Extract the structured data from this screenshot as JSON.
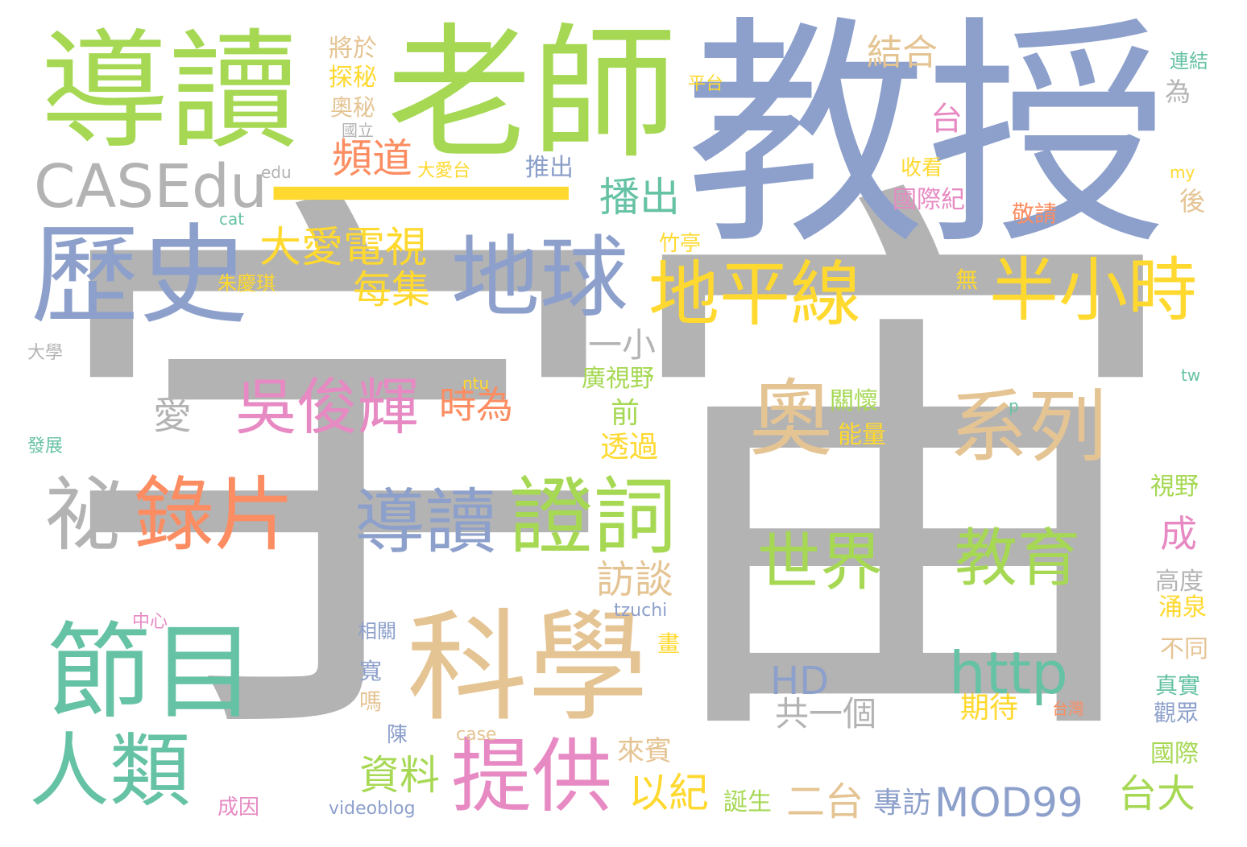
{
  "palette": {
    "gray": "#b3b3b3",
    "blue": "#8da0cb",
    "green": "#a6d854",
    "teal": "#66c2a5",
    "orange": "#fc8d62",
    "pink": "#e78ac3",
    "yellow": "#ffd92f",
    "tan": "#e5c494"
  },
  "words": [
    {
      "text": "宇宙",
      "color": "#b3b3b3"
    },
    {
      "text": "教授",
      "color": "#8da0cb"
    },
    {
      "text": "老師",
      "color": "#a6d854"
    },
    {
      "text": "導讀",
      "color": "#a6d854"
    },
    {
      "text": "一",
      "color": "#ffd92f"
    },
    {
      "text": "CASEdu",
      "color": "#b3b3b3"
    },
    {
      "text": "歷史",
      "color": "#8da0cb"
    },
    {
      "text": "地球",
      "color": "#8da0cb"
    },
    {
      "text": "地平線",
      "color": "#ffd92f"
    },
    {
      "text": "半小時",
      "color": "#ffd92f"
    },
    {
      "text": "科學",
      "color": "#e5c494"
    },
    {
      "text": "節目",
      "color": "#66c2a5"
    },
    {
      "text": "人類",
      "color": "#66c2a5"
    },
    {
      "text": "提供",
      "color": "#e78ac3"
    },
    {
      "text": "導讀",
      "color": "#8da0cb"
    },
    {
      "text": "證詞",
      "color": "#a6d854"
    },
    {
      "text": "錄片",
      "color": "#fc8d62"
    },
    {
      "text": "祕",
      "color": "#b3b3b3"
    },
    {
      "text": "吳俊輝",
      "color": "#e78ac3"
    },
    {
      "text": "奧",
      "color": "#e5c494"
    },
    {
      "text": "系列",
      "color": "#e5c494"
    },
    {
      "text": "世界",
      "color": "#a6d854"
    },
    {
      "text": "教育",
      "color": "#a6d854"
    },
    {
      "text": "http",
      "color": "#66c2a5"
    },
    {
      "text": "HD",
      "color": "#8da0cb"
    },
    {
      "text": "MOD99",
      "color": "#8da0cb"
    },
    {
      "text": "結合",
      "color": "#e5c494"
    },
    {
      "text": "頻道",
      "color": "#fc8d62"
    },
    {
      "text": "播出",
      "color": "#66c2a5"
    },
    {
      "text": "大愛電視",
      "color": "#ffd92f"
    },
    {
      "text": "每集",
      "color": "#ffd92f"
    },
    {
      "text": "台",
      "color": "#e78ac3"
    },
    {
      "text": "一小",
      "color": "#b3b3b3"
    },
    {
      "text": "愛",
      "color": "#b3b3b3"
    },
    {
      "text": "時為",
      "color": "#fc8d62"
    },
    {
      "text": "前",
      "color": "#a6d854"
    },
    {
      "text": "透過",
      "color": "#ffd92f"
    },
    {
      "text": "訪談",
      "color": "#e5c494"
    },
    {
      "text": "資料",
      "color": "#a6d854"
    },
    {
      "text": "以紀",
      "color": "#ffd92f"
    },
    {
      "text": "二台",
      "color": "#e5c494"
    },
    {
      "text": "專訪",
      "color": "#8da0cb"
    },
    {
      "text": "台大",
      "color": "#a6d854"
    },
    {
      "text": "共一個",
      "color": "#b3b3b3"
    },
    {
      "text": "高",
      "color": "#b3b3b3"
    },
    {
      "text": "期待",
      "color": "#ffd92f"
    },
    {
      "text": "成",
      "color": "#e78ac3"
    },
    {
      "text": "來賓",
      "color": "#e5c494"
    },
    {
      "text": "誕生",
      "color": "#a6d854"
    },
    {
      "text": "廣視野",
      "color": "#a6d854"
    },
    {
      "text": "關懷",
      "color": "#a6d854"
    },
    {
      "text": "能量",
      "color": "#ffd92f"
    },
    {
      "text": "將於",
      "color": "#e5c494"
    },
    {
      "text": "探秘",
      "color": "#ffd92f"
    },
    {
      "text": "奧秘",
      "color": "#e5c494"
    },
    {
      "text": "國立",
      "color": "#b3b3b3"
    },
    {
      "text": "edu",
      "color": "#b3b3b3"
    },
    {
      "text": "大愛台",
      "color": "#ffd92f"
    },
    {
      "text": "推出",
      "color": "#8da0cb"
    },
    {
      "text": "平台",
      "color": "#ffd92f"
    },
    {
      "text": "連結",
      "color": "#66c2a5"
    },
    {
      "text": "為",
      "color": "#b3b3b3"
    },
    {
      "text": "收看",
      "color": "#ffd92f"
    },
    {
      "text": "my",
      "color": "#ffd92f"
    },
    {
      "text": "國際紀",
      "color": "#e78ac3"
    },
    {
      "text": "敬請",
      "color": "#fc8d62"
    },
    {
      "text": "後",
      "color": "#e5c494"
    },
    {
      "text": "cat",
      "color": "#66c2a5"
    },
    {
      "text": "竹亭",
      "color": "#ffd92f"
    },
    {
      "text": "朱慶琪",
      "color": "#ffd92f"
    },
    {
      "text": "無",
      "color": "#ffd92f"
    },
    {
      "text": "大學",
      "color": "#b3b3b3"
    },
    {
      "text": "tw",
      "color": "#66c2a5"
    },
    {
      "text": "ntu",
      "color": "#ffd92f"
    },
    {
      "text": "p",
      "color": "#66c2a5"
    },
    {
      "text": "發展",
      "color": "#66c2a5"
    },
    {
      "text": "視野",
      "color": "#a6d854"
    },
    {
      "text": "高度",
      "color": "#b3b3b3"
    },
    {
      "text": "涌泉",
      "color": "#ffd92f"
    },
    {
      "text": "tzuchi",
      "color": "#8da0cb"
    },
    {
      "text": "中心",
      "color": "#e78ac3"
    },
    {
      "text": "相關",
      "color": "#8da0cb"
    },
    {
      "text": "畫",
      "color": "#ffd92f"
    },
    {
      "text": "寬",
      "color": "#8da0cb"
    },
    {
      "text": "嗎",
      "color": "#e5c494"
    },
    {
      "text": "不同",
      "color": "#e5c494"
    },
    {
      "text": "真實",
      "color": "#66c2a5"
    },
    {
      "text": "台灣",
      "color": "#fc8d62"
    },
    {
      "text": "觀眾",
      "color": "#8da0cb"
    },
    {
      "text": "陳",
      "color": "#8da0cb"
    },
    {
      "text": "case",
      "color": "#e5c494"
    },
    {
      "text": "國際",
      "color": "#a6d854"
    },
    {
      "text": "成因",
      "color": "#e78ac3"
    },
    {
      "text": "videoblog",
      "color": "#8da0cb"
    }
  ]
}
